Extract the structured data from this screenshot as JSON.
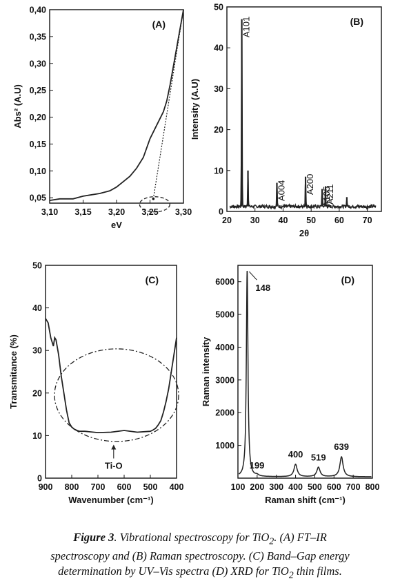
{
  "figure": {
    "caption": {
      "label": "Figure 3",
      "l1": ". Vibrational spectroscopy for TiO",
      "l1_sub": "2",
      "l1_end": ". (A) FT–IR",
      "l2": "spectroscopy and (B) Raman spectroscopy. (C) Band–Gap energy",
      "l3": "determination by UV–Vis spectra (D) XRD for TiO",
      "l3_sub": "2",
      "l3_end": " thin films."
    }
  },
  "chart_data": [
    {
      "id": "A",
      "type": "line",
      "panel_label": "(A)",
      "xlabel": "eV",
      "ylabel": "Abs² (A.U)",
      "xlim": [
        3.1,
        3.3
      ],
      "ylim": [
        0.04,
        0.4
      ],
      "xticks": [
        3.1,
        3.15,
        3.2,
        3.25,
        3.3
      ],
      "xtick_labels": [
        "3,10",
        "3,15",
        "3,20",
        "3,25",
        "3,30"
      ],
      "yticks": [
        0.05,
        0.1,
        0.15,
        0.2,
        0.25,
        0.3,
        0.35,
        0.4
      ],
      "ytick_labels": [
        "0,05",
        "0,10",
        "0,15",
        "0,20",
        "0,25",
        "0,30",
        "0,35",
        "0,40"
      ],
      "series": [
        {
          "style": "solid",
          "x": [
            3.1,
            3.115,
            3.135,
            3.15,
            3.16,
            3.175,
            3.19,
            3.2,
            3.21,
            3.22,
            3.23,
            3.24,
            3.25,
            3.26,
            3.27,
            3.275,
            3.28,
            3.29,
            3.3
          ],
          "y": [
            0.045,
            0.048,
            0.048,
            0.053,
            0.055,
            0.058,
            0.063,
            0.07,
            0.08,
            0.09,
            0.105,
            0.125,
            0.16,
            0.185,
            0.21,
            0.23,
            0.26,
            0.33,
            0.4
          ]
        },
        {
          "style": "dotted",
          "x": [
            3.255,
            3.3
          ],
          "y": [
            0.048,
            0.4
          ]
        }
      ],
      "annotation": {
        "type": "dashed-ellipse",
        "center_x": 3.255,
        "center_y": 0.043
      }
    },
    {
      "id": "B",
      "type": "line",
      "panel_label": "(B)",
      "xlabel": "2θ",
      "ylabel": "Intensity (A.U)",
      "xlim": [
        20,
        75
      ],
      "ylim": [
        0,
        50
      ],
      "xticks": [
        20,
        30,
        40,
        50,
        60,
        70
      ],
      "yticks": [
        0,
        10,
        20,
        30,
        40,
        50
      ],
      "peaks": [
        {
          "x": 25.3,
          "y": 47,
          "label": "A101"
        },
        {
          "x": 27.5,
          "y": 10,
          "label": ""
        },
        {
          "x": 37.8,
          "y": 7,
          "label": "A004"
        },
        {
          "x": 48.0,
          "y": 8.5,
          "label": "A200"
        },
        {
          "x": 53.9,
          "y": 5.5,
          "label": "A105"
        },
        {
          "x": 55.1,
          "y": 6,
          "label": "A211"
        },
        {
          "x": 62.7,
          "y": 3.5,
          "label": ""
        }
      ],
      "baseline": 1.2
    },
    {
      "id": "C",
      "type": "line",
      "panel_label": "(C)",
      "xlabel": "Wavenumber (cm⁻¹)",
      "ylabel": "Transmitance (%)",
      "xlim": [
        900,
        400
      ],
      "ylim": [
        0,
        50
      ],
      "xticks": [
        900,
        800,
        700,
        600,
        500,
        400
      ],
      "yticks": [
        0,
        10,
        20,
        30,
        40,
        50
      ],
      "series": [
        {
          "style": "solid",
          "x": [
            900,
            890,
            880,
            870,
            865,
            860,
            850,
            840,
            830,
            820,
            810,
            800,
            790,
            780,
            770,
            760,
            750,
            700,
            650,
            600,
            550,
            500,
            490,
            480,
            470,
            460,
            450,
            440,
            430,
            420,
            410,
            400
          ],
          "y": [
            37.5,
            36.5,
            33,
            31,
            33,
            32.5,
            29,
            24,
            20,
            16,
            13,
            12,
            11.5,
            11.2,
            11.0,
            11.0,
            11.0,
            10.7,
            10.8,
            11.2,
            10.8,
            11.0,
            11.3,
            11.7,
            12.5,
            13.5,
            15.5,
            18,
            21,
            25,
            29,
            33
          ]
        }
      ],
      "annotation": {
        "type": "dash-dot-ellipse",
        "label": "Ti-O",
        "arrow_to_x": 640,
        "arrow_to_y": 8.2
      }
    },
    {
      "id": "D",
      "type": "line",
      "panel_label": "(D)",
      "xlabel": "Raman shift (cm⁻¹)",
      "ylabel": "Raman intensity",
      "xlim": [
        100,
        800
      ],
      "ylim": [
        0,
        6500
      ],
      "xticks": [
        100,
        200,
        300,
        400,
        500,
        600,
        700,
        800
      ],
      "yticks": [
        1000,
        2000,
        3000,
        4000,
        5000,
        6000
      ],
      "peaks": [
        {
          "x": 148,
          "y": 6350,
          "label": "148"
        },
        {
          "x": 199,
          "y": 80,
          "label": "199"
        },
        {
          "x": 400,
          "y": 420,
          "label": "400"
        },
        {
          "x": 519,
          "y": 330,
          "label": "519"
        },
        {
          "x": 639,
          "y": 650,
          "label": "639"
        }
      ],
      "baseline": 40
    }
  ]
}
